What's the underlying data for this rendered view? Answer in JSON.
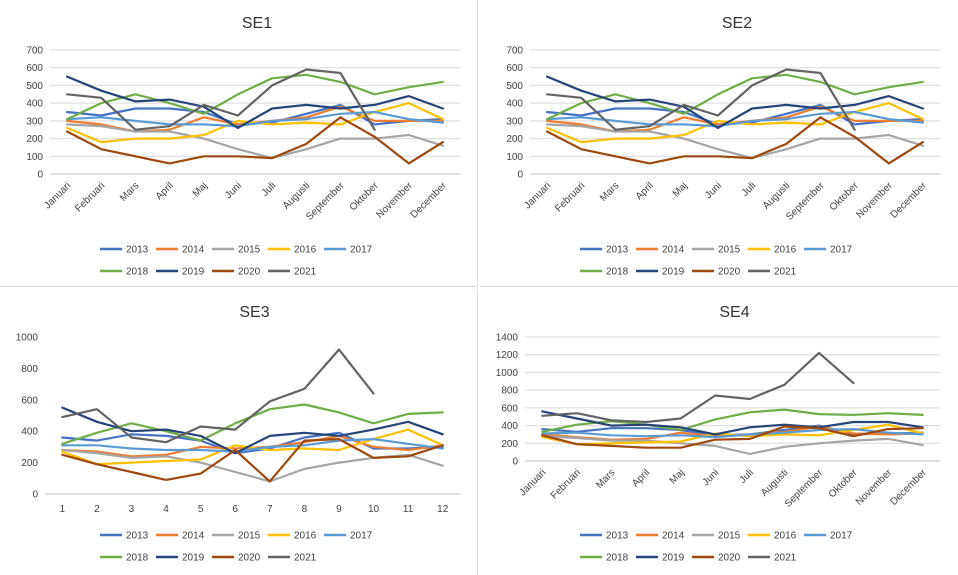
{
  "series_colors": {
    "2013": "#4472c4",
    "2014": "#ed7d31",
    "2015": "#a5a5a5",
    "2016": "#ffc000",
    "2017": "#5b9bd5",
    "2018": "#70ad47",
    "2019": "#264478",
    "2020": "#9e480e",
    "2021": "#636363"
  },
  "chart_data": [
    {
      "type": "line",
      "title": "SE1",
      "categories": [
        "Januari",
        "Februari",
        "Mars",
        "April",
        "Maj",
        "Juni",
        "Juli",
        "Augusti",
        "September",
        "Oktober",
        "November",
        "December"
      ],
      "ylim": [
        0,
        700
      ],
      "yticks": [
        0,
        100,
        200,
        300,
        400,
        500,
        600,
        700
      ],
      "grid": true,
      "legend": "bottom",
      "series": [
        {
          "name": "2013",
          "values": [
            350,
            330,
            370,
            370,
            350,
            280,
            290,
            340,
            390,
            280,
            300,
            310
          ]
        },
        {
          "name": "2014",
          "values": [
            300,
            280,
            240,
            250,
            320,
            280,
            300,
            320,
            380,
            300,
            300,
            300
          ]
        },
        {
          "name": "2015",
          "values": [
            280,
            270,
            240,
            240,
            200,
            140,
            90,
            140,
            200,
            200,
            220,
            160
          ]
        },
        {
          "name": "2016",
          "values": [
            260,
            180,
            200,
            200,
            220,
            300,
            280,
            290,
            280,
            350,
            400,
            310
          ]
        },
        {
          "name": "2017",
          "values": [
            310,
            320,
            300,
            280,
            280,
            270,
            300,
            310,
            340,
            350,
            310,
            290
          ]
        },
        {
          "name": "2018",
          "values": [
            310,
            400,
            450,
            400,
            340,
            450,
            540,
            560,
            520,
            450,
            490,
            520
          ]
        },
        {
          "name": "2019",
          "values": [
            550,
            470,
            410,
            420,
            380,
            260,
            370,
            390,
            370,
            390,
            440,
            370
          ]
        },
        {
          "name": "2020",
          "values": [
            240,
            140,
            100,
            60,
            100,
            100,
            90,
            170,
            320,
            210,
            60,
            180
          ]
        },
        {
          "name": "2021",
          "values": [
            450,
            430,
            250,
            270,
            390,
            330,
            500,
            590,
            570,
            250,
            null,
            null
          ]
        }
      ]
    },
    {
      "type": "line",
      "title": "SE2",
      "categories": [
        "Januari",
        "Februari",
        "Mars",
        "April",
        "Maj",
        "Juni",
        "Juli",
        "Augusti",
        "September",
        "Oktober",
        "November",
        "December"
      ],
      "ylim": [
        0,
        700
      ],
      "yticks": [
        0,
        100,
        200,
        300,
        400,
        500,
        600,
        700
      ],
      "grid": true,
      "legend": "bottom",
      "series": [
        {
          "name": "2013",
          "values": [
            350,
            330,
            370,
            370,
            350,
            280,
            290,
            340,
            390,
            280,
            300,
            310
          ]
        },
        {
          "name": "2014",
          "values": [
            300,
            280,
            240,
            250,
            320,
            280,
            300,
            320,
            380,
            300,
            300,
            300
          ]
        },
        {
          "name": "2015",
          "values": [
            280,
            270,
            240,
            240,
            200,
            140,
            90,
            140,
            200,
            200,
            220,
            160
          ]
        },
        {
          "name": "2016",
          "values": [
            260,
            180,
            200,
            200,
            220,
            300,
            280,
            290,
            280,
            350,
            400,
            310
          ]
        },
        {
          "name": "2017",
          "values": [
            310,
            320,
            300,
            280,
            280,
            270,
            300,
            310,
            340,
            350,
            310,
            290
          ]
        },
        {
          "name": "2018",
          "values": [
            310,
            400,
            450,
            400,
            340,
            450,
            540,
            560,
            520,
            450,
            490,
            520
          ]
        },
        {
          "name": "2019",
          "values": [
            550,
            470,
            410,
            420,
            380,
            260,
            370,
            390,
            370,
            390,
            440,
            370
          ]
        },
        {
          "name": "2020",
          "values": [
            240,
            140,
            100,
            60,
            100,
            100,
            90,
            170,
            320,
            210,
            60,
            180
          ]
        },
        {
          "name": "2021",
          "values": [
            450,
            430,
            250,
            270,
            390,
            330,
            500,
            590,
            570,
            250,
            null,
            null
          ]
        }
      ]
    },
    {
      "type": "line",
      "title": "SE3",
      "categories": [
        "1",
        "2",
        "3",
        "4",
        "5",
        "6",
        "7",
        "8",
        "9",
        "10",
        "11",
        "12"
      ],
      "ylim": [
        0,
        1000
      ],
      "yticks": [
        0,
        200,
        400,
        600,
        800,
        1000
      ],
      "grid": false,
      "legend": "bottom",
      "series": [
        {
          "name": "2013",
          "values": [
            360,
            340,
            380,
            370,
            340,
            260,
            290,
            360,
            390,
            290,
            290,
            300
          ]
        },
        {
          "name": "2014",
          "values": [
            280,
            270,
            240,
            250,
            300,
            290,
            300,
            330,
            370,
            300,
            280,
            310
          ]
        },
        {
          "name": "2015",
          "values": [
            280,
            260,
            230,
            240,
            200,
            140,
            80,
            160,
            200,
            230,
            250,
            180
          ]
        },
        {
          "name": "2016",
          "values": [
            270,
            190,
            200,
            210,
            220,
            310,
            280,
            290,
            280,
            350,
            410,
            310
          ]
        },
        {
          "name": "2017",
          "values": [
            310,
            310,
            290,
            280,
            280,
            270,
            300,
            310,
            340,
            350,
            320,
            290
          ]
        },
        {
          "name": "2018",
          "values": [
            320,
            390,
            450,
            400,
            340,
            450,
            540,
            570,
            520,
            450,
            510,
            520
          ]
        },
        {
          "name": "2019",
          "values": [
            550,
            460,
            400,
            410,
            370,
            260,
            370,
            390,
            370,
            410,
            460,
            380
          ]
        },
        {
          "name": "2020",
          "values": [
            250,
            190,
            140,
            90,
            130,
            280,
            80,
            340,
            350,
            230,
            240,
            310
          ]
        },
        {
          "name": "2021",
          "values": [
            490,
            540,
            360,
            330,
            430,
            410,
            590,
            670,
            920,
            640,
            null,
            null
          ]
        }
      ]
    },
    {
      "type": "line",
      "title": "SE4",
      "categories": [
        "Januari",
        "Februari",
        "Mars",
        "April",
        "Maj",
        "Juni",
        "Juli",
        "Augusti",
        "September",
        "Oktober",
        "November",
        "December"
      ],
      "ylim": [
        0,
        1400
      ],
      "yticks": [
        0,
        200,
        400,
        600,
        800,
        1000,
        1200,
        1400
      ],
      "grid": true,
      "legend": "bottom",
      "series": [
        {
          "name": "2013",
          "values": [
            360,
            330,
            370,
            370,
            350,
            290,
            300,
            350,
            400,
            300,
            310,
            320
          ]
        },
        {
          "name": "2014",
          "values": [
            300,
            270,
            240,
            250,
            320,
            280,
            300,
            330,
            390,
            310,
            300,
            310
          ]
        },
        {
          "name": "2015",
          "values": [
            280,
            260,
            230,
            230,
            200,
            170,
            80,
            160,
            200,
            230,
            250,
            180
          ]
        },
        {
          "name": "2016",
          "values": [
            270,
            190,
            200,
            210,
            220,
            310,
            280,
            300,
            290,
            350,
            410,
            310
          ]
        },
        {
          "name": "2017",
          "values": [
            310,
            320,
            290,
            280,
            290,
            270,
            300,
            320,
            350,
            360,
            320,
            300
          ]
        },
        {
          "name": "2018",
          "values": [
            330,
            410,
            450,
            410,
            350,
            470,
            550,
            580,
            530,
            520,
            540,
            520
          ]
        },
        {
          "name": "2019",
          "values": [
            560,
            480,
            400,
            410,
            380,
            300,
            380,
            410,
            380,
            440,
            440,
            380
          ]
        },
        {
          "name": "2020",
          "values": [
            290,
            190,
            170,
            150,
            150,
            240,
            250,
            390,
            370,
            280,
            360,
            370
          ]
        },
        {
          "name": "2021",
          "values": [
            510,
            540,
            460,
            440,
            480,
            740,
            700,
            860,
            1220,
            880,
            null,
            null
          ]
        }
      ]
    }
  ]
}
